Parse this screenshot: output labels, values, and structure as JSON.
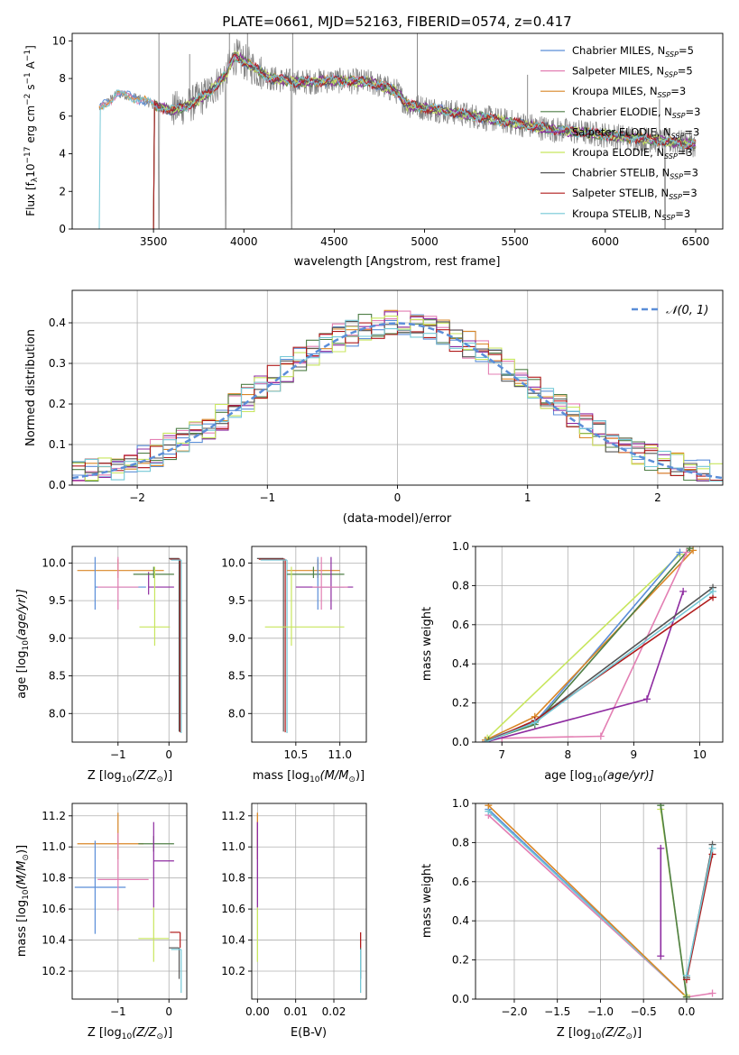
{
  "figure_title": "PLATE=0661, MJD=52163, FIBERID=0574, z=0.417",
  "colors": {
    "chabrier_miles": "#5b8ed8",
    "salpeter_miles": "#e37fb3",
    "kroupa_miles": "#d98626",
    "chabrier_elodie": "#4f7f46",
    "salpeter_elodie": "#8e2ba0",
    "kroupa_elodie": "#c8e65e",
    "chabrier_stelib": "#555555",
    "salpeter_stelib": "#b01b1b",
    "kroupa_stelib": "#74c8d6",
    "data": "#808080",
    "normal": "#5b8ed8"
  },
  "legend_spectrum": [
    {
      "label": "Chabrier MILES, N",
      "sub": "SSP",
      "tail": "=5",
      "color_key": "chabrier_miles"
    },
    {
      "label": "Salpeter MILES, N",
      "sub": "SSP",
      "tail": "=5",
      "color_key": "salpeter_miles"
    },
    {
      "label": "Kroupa MILES, N",
      "sub": "SSP",
      "tail": "=3",
      "color_key": "kroupa_miles"
    },
    {
      "label": "Chabrier ELODIE, N",
      "sub": "SSP",
      "tail": "=3",
      "color_key": "chabrier_elodie"
    },
    {
      "label": "Salpeter ELODIE, N",
      "sub": "SSP",
      "tail": "=3",
      "color_key": "salpeter_elodie"
    },
    {
      "label": "Kroupa ELODIE, N",
      "sub": "SSP",
      "tail": "=3",
      "color_key": "kroupa_elodie"
    },
    {
      "label": "Chabrier STELIB, N",
      "sub": "SSP",
      "tail": "=3",
      "color_key": "chabrier_stelib"
    },
    {
      "label": "Salpeter STELIB, N",
      "sub": "SSP",
      "tail": "=3",
      "color_key": "salpeter_stelib"
    },
    {
      "label": "Kroupa STELIB, N",
      "sub": "SSP",
      "tail": "=3",
      "color_key": "kroupa_stelib"
    }
  ],
  "legend_hist": "𝒩(0, 1)",
  "chart_data": [
    {
      "id": "spectrum",
      "type": "line",
      "xlabel": "wavelength [Angstrom, rest frame]",
      "ylabel_pre": "Flux [f",
      "ylabel_sub": "λ",
      "ylabel_mid": "10",
      "ylabel_sup1": "−17",
      "ylabel_mid2": " erg cm",
      "ylabel_sup2": "−2",
      "ylabel_mid3": " s",
      "ylabel_sup3": "−1",
      "ylabel_mid4": " A",
      "ylabel_sup4": "−1",
      "ylabel_end": "]",
      "xlim": [
        3050,
        6650
      ],
      "ylim": [
        0,
        10.4
      ],
      "xticks": [
        3500,
        4000,
        4500,
        5000,
        5500,
        6000,
        6500
      ],
      "yticks": [
        0,
        2,
        4,
        6,
        8,
        10
      ],
      "grid": false,
      "legend_position": "upper-right",
      "continuum": [
        [
          3200,
          6.4
        ],
        [
          3300,
          7.2
        ],
        [
          3400,
          7.0
        ],
        [
          3500,
          6.6
        ],
        [
          3600,
          6.3
        ],
        [
          3700,
          6.6
        ],
        [
          3800,
          7.2
        ],
        [
          3900,
          8.2
        ],
        [
          3950,
          9.2
        ],
        [
          4050,
          8.6
        ],
        [
          4150,
          8.0
        ],
        [
          4300,
          7.8
        ],
        [
          4500,
          7.9
        ],
        [
          4700,
          7.8
        ],
        [
          4850,
          7.3
        ],
        [
          4900,
          6.6
        ],
        [
          5100,
          6.3
        ],
        [
          5400,
          5.8
        ],
        [
          5700,
          5.3
        ],
        [
          6000,
          5.0
        ],
        [
          6300,
          4.7
        ],
        [
          6500,
          4.5
        ]
      ],
      "spikes_up": [
        [
          3530,
          10.4
        ],
        [
          3700,
          9.3
        ],
        [
          3920,
          10.4
        ],
        [
          4020,
          10.4
        ],
        [
          4270,
          10.4
        ],
        [
          4960,
          10.4
        ],
        [
          5570,
          8.2
        ],
        [
          6300,
          6.9
        ]
      ],
      "dips_to_zero": [
        3530,
        3900,
        4265,
        6330
      ],
      "series_keys": [
        "chabrier_miles",
        "salpeter_miles",
        "kroupa_miles",
        "chabrier_elodie",
        "salpeter_elodie",
        "kroupa_elodie",
        "chabrier_stelib",
        "salpeter_stelib",
        "kroupa_stelib"
      ],
      "model_x_start": [
        3200,
        3200,
        3200,
        3500,
        3500,
        3500,
        3500,
        3500,
        3200
      ],
      "model_x_end": [
        6500,
        6500,
        6500,
        6500,
        6500,
        6500,
        6500,
        6500,
        6500
      ]
    },
    {
      "id": "residual_hist",
      "type": "step",
      "xlabel": "(data-model)/error",
      "ylabel": "Normed distribution",
      "xlim": [
        -2.5,
        2.5
      ],
      "ylim": [
        0,
        0.48
      ],
      "xticks": [
        -2,
        -1,
        0,
        1,
        2
      ],
      "yticks": [
        0,
        0.1,
        0.2,
        0.3,
        0.4
      ],
      "grid": true,
      "legend_position": "upper-right",
      "bin_width": 0.1
    },
    {
      "id": "age_vs_Z",
      "type": "scatter",
      "xlabel_pre": "Z [log",
      "xlabel_sub": "10",
      "xlabel_mid": "(Z/Z",
      "xlabel_sub2": "⊙",
      "xlabel_end": ")]",
      "ylabel_pre": "age  [log",
      "ylabel_sub": "10",
      "ylabel_end": "(age/yr)]",
      "xlim": [
        -1.9,
        0.35
      ],
      "ylim": [
        7.62,
        10.22
      ],
      "xticks": [
        -1,
        0
      ],
      "yticks": [
        8.0,
        8.5,
        9.0,
        9.5,
        10.0
      ],
      "grid": true,
      "points": [
        {
          "key": "kroupa_miles",
          "x": -1.0,
          "xerr": [
            0.8,
            0.9
          ],
          "y": 9.9,
          "yerr": [
            0.1,
            0.15
          ]
        },
        {
          "key": "chabrier_miles",
          "x": -1.45,
          "xerr": [
            0.0,
            1.0
          ],
          "y": 9.68,
          "yerr": [
            0.3,
            0.4
          ]
        },
        {
          "key": "salpeter_miles",
          "x": -1.0,
          "xerr": [
            0.4,
            0.4
          ],
          "y": 9.68,
          "yerr": [
            0.3,
            0.4
          ]
        },
        {
          "key": "salpeter_elodie",
          "x": -0.4,
          "xerr": [
            0.0,
            0.5
          ],
          "y": 9.68,
          "yerr": [
            0.1,
            0.2
          ]
        },
        {
          "key": "chabrier_elodie",
          "x": -0.3,
          "xerr": [
            0.4,
            0.4
          ],
          "y": 9.85,
          "yerr": [
            0.05,
            0.1
          ]
        },
        {
          "key": "kroupa_elodie",
          "x": -0.28,
          "xerr": [
            0.3,
            0.3
          ],
          "y": 9.15,
          "yerr": [
            0.25,
            0.8
          ]
        },
        {
          "key": "chabrier_stelib",
          "x": 0.2,
          "xerr": [
            0.2,
            0.0
          ],
          "y": 10.06,
          "yerr": [
            2.3,
            0.0
          ]
        },
        {
          "key": "salpeter_stelib",
          "x": 0.22,
          "xerr": [
            0.2,
            0.0
          ],
          "y": 10.05,
          "yerr": [
            2.3,
            0.0
          ]
        },
        {
          "key": "kroupa_stelib",
          "x": 0.24,
          "xerr": [
            0.2,
            0.0
          ],
          "y": 10.04,
          "yerr": [
            2.3,
            0.0
          ]
        }
      ]
    },
    {
      "id": "age_vs_mass",
      "type": "scatter",
      "xlabel_pre": "mass [log",
      "xlabel_sub": "10",
      "xlabel_mid": "(M/M",
      "xlabel_sub2": "⊙",
      "xlabel_end": ")]",
      "xlim": [
        10.0,
        11.3
      ],
      "ylim": [
        7.62,
        10.22
      ],
      "xticks": [
        10.5,
        11.0
      ],
      "yticks": [
        8.0,
        8.5,
        9.0,
        9.5,
        10.0
      ],
      "grid": true
    },
    {
      "id": "mass_weight_vs_age",
      "type": "line",
      "xlabel_pre": "age  [log",
      "xlabel_sub": "10",
      "xlabel_end": "(age/yr)]",
      "ylabel": "mass weight",
      "xlim": [
        6.6,
        10.35
      ],
      "ylim": [
        0,
        1.0
      ],
      "xticks": [
        7,
        8,
        9,
        10
      ],
      "yticks": [
        0.0,
        0.2,
        0.4,
        0.6,
        0.8,
        1.0
      ],
      "grid": true,
      "series": [
        {
          "key": "kroupa_elodie",
          "x": [
            6.78,
            9.7
          ],
          "y": [
            0.02,
            0.96
          ]
        },
        {
          "key": "chabrier_miles",
          "x": [
            6.75,
            7.5,
            9.7
          ],
          "y": [
            0.01,
            0.1,
            0.97
          ]
        },
        {
          "key": "kroupa_miles",
          "x": [
            6.75,
            7.5,
            9.9
          ],
          "y": [
            0.01,
            0.13,
            0.98
          ]
        },
        {
          "key": "chabrier_elodie",
          "x": [
            6.8,
            7.5,
            9.85
          ],
          "y": [
            0.01,
            0.09,
            0.99
          ]
        },
        {
          "key": "salpeter_miles",
          "x": [
            7.0,
            8.5,
            9.8
          ],
          "y": [
            0.02,
            0.03,
            0.97
          ]
        },
        {
          "key": "salpeter_elodie",
          "x": [
            6.75,
            9.2,
            9.75
          ],
          "y": [
            0.0,
            0.22,
            0.77
          ]
        },
        {
          "key": "chabrier_stelib",
          "x": [
            6.75,
            7.5,
            10.2
          ],
          "y": [
            0.0,
            0.11,
            0.79
          ]
        },
        {
          "key": "salpeter_stelib",
          "x": [
            6.75,
            7.5,
            10.2
          ],
          "y": [
            0.0,
            0.11,
            0.74
          ]
        },
        {
          "key": "kroupa_stelib",
          "x": [
            6.75,
            7.5,
            10.2
          ],
          "y": [
            0.0,
            0.1,
            0.77
          ]
        }
      ]
    },
    {
      "id": "mass_vs_Z",
      "type": "scatter",
      "xlabel_pre": "Z [log",
      "xlabel_sub": "10",
      "xlabel_mid": "(Z/Z",
      "xlabel_sub2": "⊙",
      "xlabel_end": ")]",
      "ylabel_pre": "mass [log",
      "ylabel_sub": "10",
      "ylabel_mid": "(M/M",
      "ylabel_sub2": "⊙",
      "ylabel_end": ")]",
      "xlim": [
        -1.9,
        0.35
      ],
      "ylim": [
        10.02,
        11.28
      ],
      "xticks": [
        -1,
        0
      ],
      "yticks": [
        10.2,
        10.4,
        10.6,
        10.8,
        11.0,
        11.2
      ],
      "grid": true
    },
    {
      "id": "mass_vs_ebv",
      "type": "scatter",
      "xlabel": "E(B-V)",
      "xlim": [
        -0.0015,
        0.0285
      ],
      "ylim": [
        10.02,
        11.28
      ],
      "xticks": [
        0.0,
        0.01,
        0.02
      ],
      "xtick_labels": [
        "0.00",
        "0.01",
        "0.02"
      ],
      "yticks": [
        10.2,
        10.4,
        10.6,
        10.8,
        11.0,
        11.2
      ],
      "grid": true
    },
    {
      "id": "mass_weight_vs_Z",
      "type": "line",
      "xlabel_pre": "Z [log",
      "xlabel_sub": "10",
      "xlabel_mid": "(Z/Z",
      "xlabel_sub2": "⊙",
      "xlabel_end": ")]",
      "ylabel": "mass weight",
      "xlim": [
        -2.45,
        0.42
      ],
      "ylim": [
        0,
        1.0
      ],
      "xticks": [
        -2.0,
        -1.5,
        -1.0,
        -0.5,
        0.0
      ],
      "xtick_labels": [
        "−2.0",
        "−1.5",
        "−1.0",
        "−0.5",
        "0.0"
      ],
      "yticks": [
        0.0,
        0.2,
        0.4,
        0.6,
        0.8,
        1.0
      ],
      "grid": true,
      "series": [
        {
          "key": "salpeter_miles",
          "x": [
            -2.3,
            0.0,
            0.3
          ],
          "y": [
            0.94,
            0.01,
            0.03
          ]
        },
        {
          "key": "chabrier_miles",
          "x": [
            -2.3,
            0.0
          ],
          "y": [
            0.97,
            0.01
          ]
        },
        {
          "key": "kroupa_stelib",
          "x": [
            -2.3,
            0.0
          ],
          "y": [
            0.96,
            0.01
          ]
        },
        {
          "key": "kroupa_miles",
          "x": [
            -2.3,
            0.0
          ],
          "y": [
            0.99,
            0.01
          ]
        },
        {
          "key": "kroupa_elodie",
          "x": [
            -0.3,
            0.0
          ],
          "y": [
            0.97,
            0.02
          ]
        },
        {
          "key": "chabrier_elodie",
          "x": [
            -0.3,
            0.0
          ],
          "y": [
            0.99,
            0.01
          ]
        },
        {
          "key": "salpeter_elodie",
          "x": [
            -0.3,
            -0.3
          ],
          "y": [
            0.77,
            0.22
          ]
        },
        {
          "key": "chabrier_stelib",
          "x": [
            0.0,
            0.3
          ],
          "y": [
            0.11,
            0.79
          ]
        },
        {
          "key": "salpeter_stelib",
          "x": [
            0.0,
            0.3
          ],
          "y": [
            0.1,
            0.74
          ]
        },
        {
          "key": "kroupa_stelib",
          "x": [
            0.0,
            0.3
          ],
          "y": [
            0.12,
            0.77
          ]
        }
      ]
    }
  ]
}
